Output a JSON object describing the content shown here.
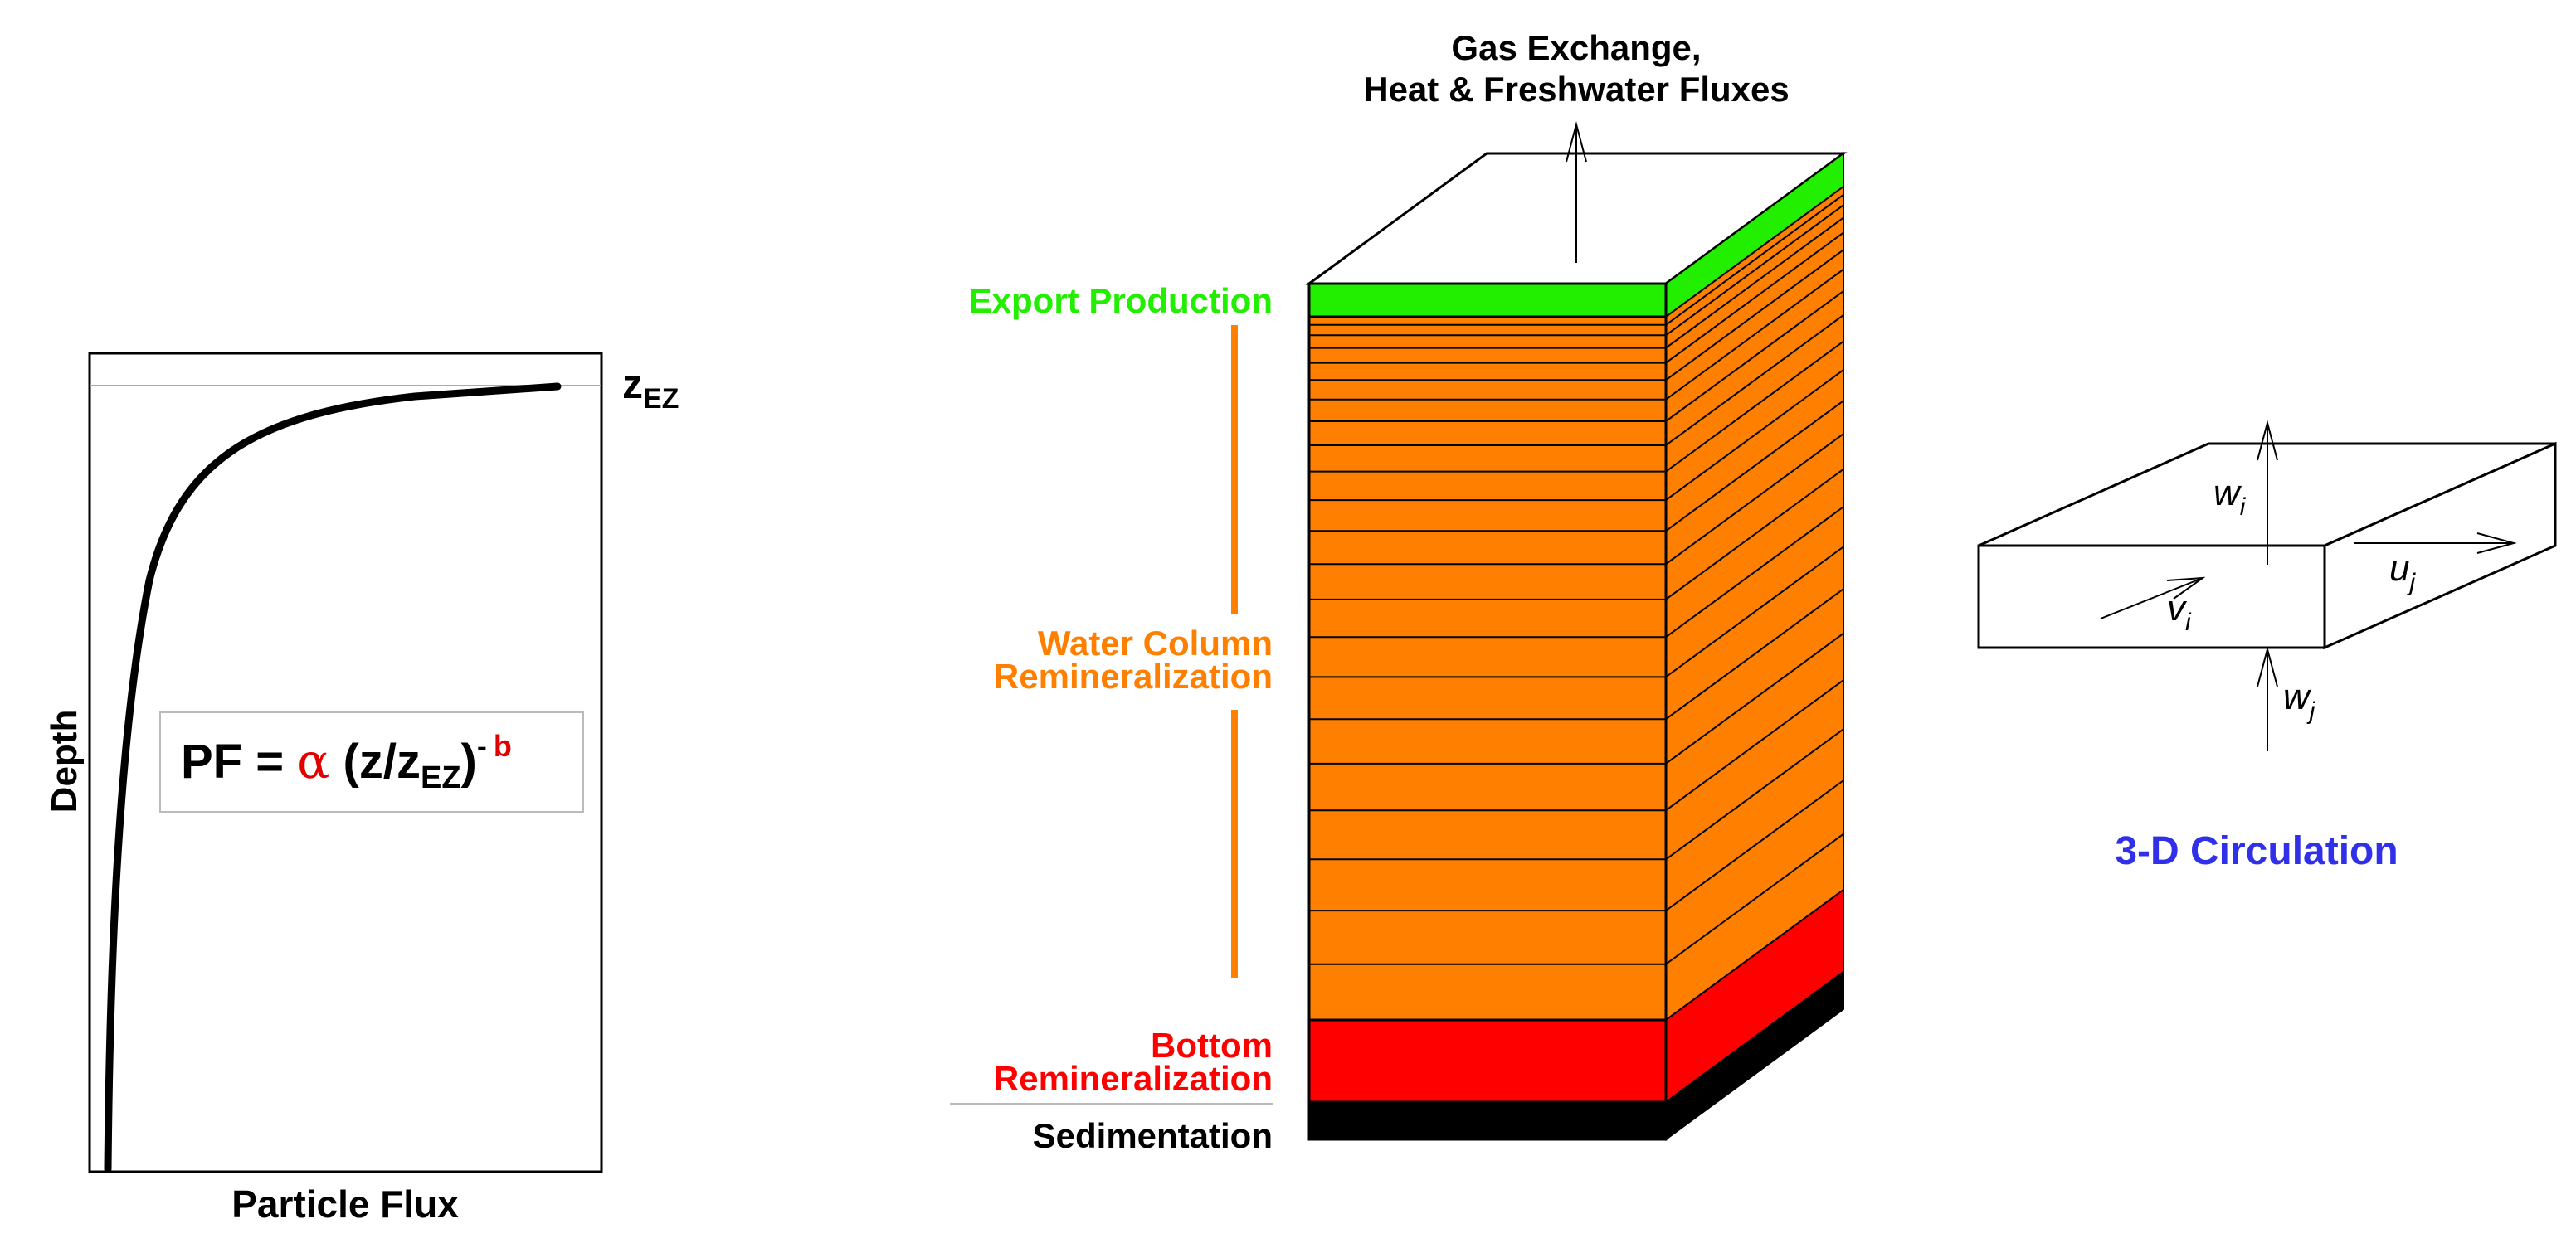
{
  "profile_plot": {
    "xlabel": "Particle Flux",
    "ylabel": "Depth",
    "top_label": {
      "base": "z",
      "sub": "EZ"
    },
    "formula": {
      "lhs": "PF =",
      "alpha": "α",
      "open": "(z/z",
      "sub": "EZ",
      "close": ")",
      "exp_sign": "-",
      "exp": "b",
      "accent_color": "#e00000"
    }
  },
  "column": {
    "top_label_line1": "Gas Exchange,",
    "top_label_line2": "Heat & Freshwater Fluxes",
    "labels": {
      "export": "Export Production",
      "water_line1": "Water Column",
      "water_line2": "Remineralization",
      "bottom_line1": "Bottom",
      "bottom_line2": "Remineralization",
      "sedimentation": "Sedimentation"
    },
    "colors": {
      "export": "#22ee00",
      "water": "#ff8000",
      "bottom": "#ff0000",
      "sediment": "#000000"
    },
    "water_layer_count": 22
  },
  "circulation": {
    "title": "3-D Circulation",
    "title_color": "#3030e8",
    "labels": {
      "wi": {
        "base": "w",
        "sub": "i"
      },
      "wj": {
        "base": "w",
        "sub": "j"
      },
      "vi": {
        "base": "v",
        "sub": "i"
      },
      "uj": {
        "base": "u",
        "sub": "j"
      }
    }
  }
}
